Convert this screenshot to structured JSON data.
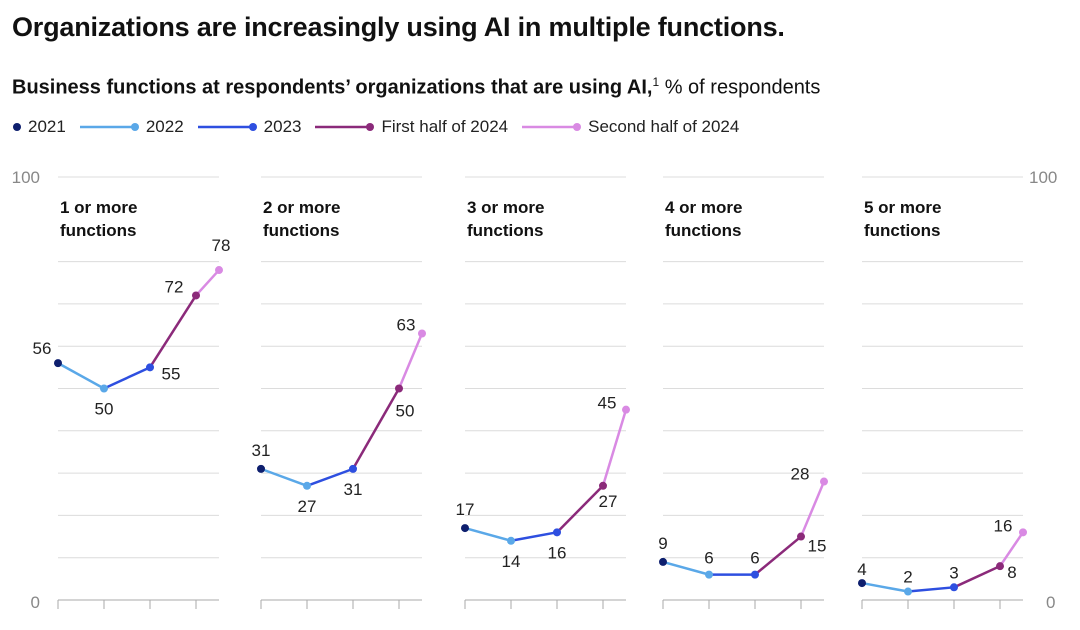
{
  "title": "Organizations are increasingly using AI in multiple functions.",
  "subtitle_bold": "Business functions at respondents’ organizations that are using AI,",
  "subtitle_sup": "1",
  "subtitle_rest": " % of respondents",
  "chart_data": {
    "type": "line",
    "title": "Business functions at respondents’ organizations that are using AI",
    "ylabel": "% of respondents",
    "ylim": [
      0,
      100
    ],
    "y_ticks": [
      "100",
      "0"
    ],
    "grid": true,
    "legend_position": "top-left",
    "periods": [
      "2021",
      "2022",
      "2023",
      "First half of 2024",
      "Second half of 2024"
    ],
    "period_time": [
      2021,
      2022,
      2023,
      2024,
      2024.5
    ],
    "colors": [
      "#0e1f6e",
      "#5aa8e8",
      "#2e4fe0",
      "#8b2a7a",
      "#d98ae3"
    ],
    "panels": [
      {
        "title_1": "1 or more",
        "title_2": "functions",
        "values": [
          56,
          50,
          55,
          72,
          78
        ]
      },
      {
        "title_1": "2 or more",
        "title_2": "functions",
        "values": [
          31,
          27,
          31,
          50,
          63
        ]
      },
      {
        "title_1": "3 or more",
        "title_2": "functions",
        "values": [
          17,
          14,
          16,
          27,
          45
        ]
      },
      {
        "title_1": "4 or more",
        "title_2": "functions",
        "values": [
          9,
          6,
          6,
          15,
          28
        ]
      },
      {
        "title_1": "5 or more",
        "title_2": "functions",
        "values": [
          4,
          2,
          3,
          8,
          16
        ]
      }
    ]
  }
}
